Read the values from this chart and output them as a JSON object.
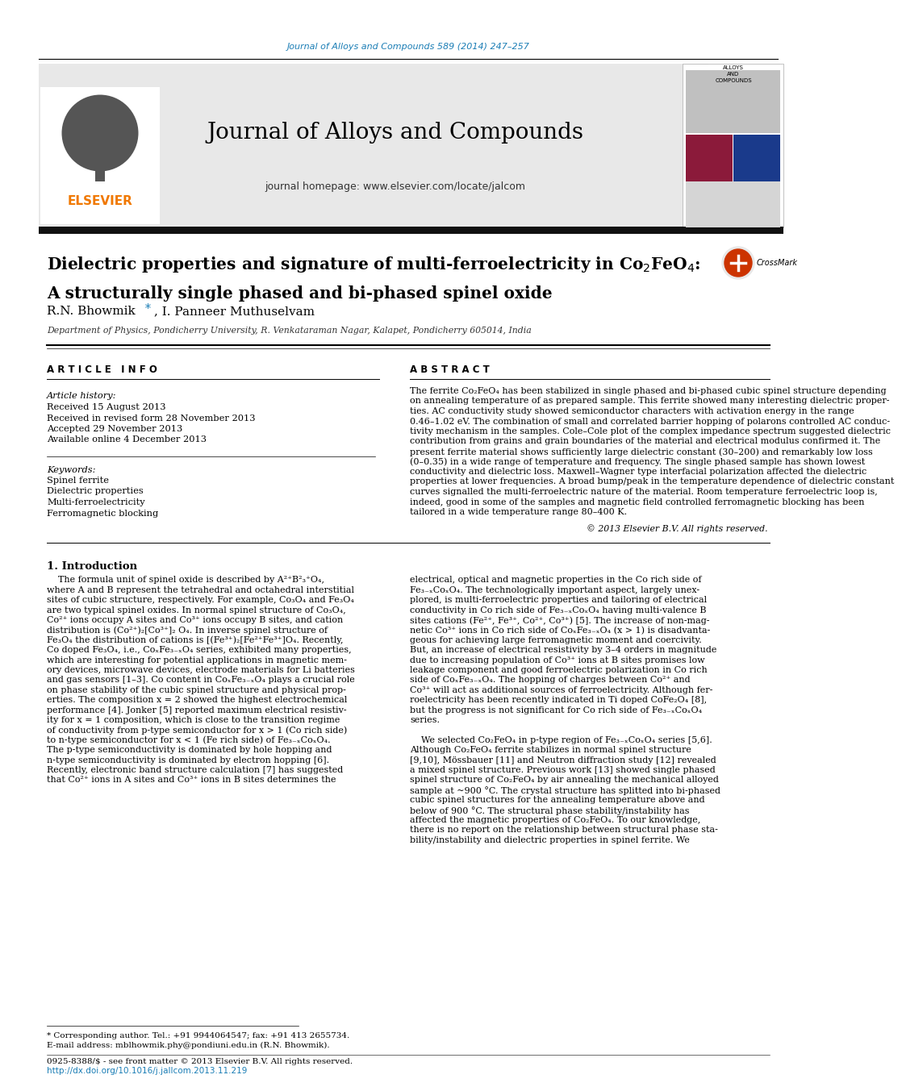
{
  "journal_link_text": "Journal of Alloys and Compounds 589 (2014) 247–257",
  "journal_link_color": "#1a7db5",
  "header_bg_color": "#e8e8e8",
  "header_journal_title": "Journal of Alloys and Compounds",
  "header_homepage": "journal homepage: www.elsevier.com/locate/jalcom",
  "elsevier_color": "#f07800",
  "paper_title_line1": "Dielectric properties and signature of multi-ferroelectricity in Co$_2$FeO$_4$:",
  "paper_title_line2": "A structurally single phased and bi-phased spinel oxide",
  "affiliation": "Department of Physics, Pondicherry University, R. Venkataraman Nagar, Kalapet, Pondicherry 605014, India",
  "article_info_header": "A R T I C L E   I N F O",
  "article_history_label": "Article history:",
  "received": "Received 15 August 2013",
  "received_revised": "Received in revised form 28 November 2013",
  "accepted": "Accepted 29 November 2013",
  "available": "Available online 4 December 2013",
  "keywords_label": "Keywords:",
  "keywords": [
    "Spinel ferrite",
    "Dielectric properties",
    "Multi-ferroelectricity",
    "Ferromagnetic blocking"
  ],
  "abstract_header": "A B S T R A C T",
  "abstract_text_lines": [
    "The ferrite Co₂FeO₄ has been stabilized in single phased and bi-phased cubic spinel structure depending",
    "on annealing temperature of as prepared sample. This ferrite showed many interesting dielectric proper-",
    "ties. AC conductivity study showed semiconductor characters with activation energy in the range",
    "0.46–1.02 eV. The combination of small and correlated barrier hopping of polarons controlled AC conduc-",
    "tivity mechanism in the samples. Cole–Cole plot of the complex impedance spectrum suggested dielectric",
    "contribution from grains and grain boundaries of the material and electrical modulus confirmed it. The",
    "present ferrite material shows sufficiently large dielectric constant (30–200) and remarkably low loss",
    "(0–0.35) in a wide range of temperature and frequency. The single phased sample has shown lowest",
    "conductivity and dielectric loss. Maxwell–Wagner type interfacial polarization affected the dielectric",
    "properties at lower frequencies. A broad bump/peak in the temperature dependence of dielectric constant",
    "curves signalled the multi-ferroelectric nature of the material. Room temperature ferroelectric loop is,",
    "indeed, good in some of the samples and magnetic field controlled ferromagnetic blocking has been",
    "tailored in a wide temperature range 80–400 K."
  ],
  "copyright_text": "© 2013 Elsevier B.V. All rights reserved.",
  "intro_header": "1. Introduction",
  "intro_col1_lines": [
    "    The formula unit of spinel oxide is described by A²⁺B²₃⁺O₄,",
    "where A and B represent the tetrahedral and octahedral interstitial",
    "sites of cubic structure, respectively. For example, Co₃O₄ and Fe₃O₄",
    "are two typical spinel oxides. In normal spinel structure of Co₃O₄,",
    "Co²⁺ ions occupy A sites and Co³⁺ ions occupy B sites, and cation",
    "distribution is (Co²⁺)₂[Co³⁺]₂ O₄. In inverse spinel structure of",
    "Fe₃O₄ the distribution of cations is [(Fe³⁺)₂[Fe²⁺Fe³⁺]O₄. Recently,",
    "Co doped Fe₃O₄, i.e., CoₓFe₃₋ₓO₄ series, exhibited many properties,",
    "which are interesting for potential applications in magnetic mem-",
    "ory devices, microwave devices, electrode materials for Li batteries",
    "and gas sensors [1–3]. Co content in CoₓFe₃₋ₓO₄ plays a crucial role",
    "on phase stability of the cubic spinel structure and physical prop-",
    "erties. The composition x = 2 showed the highest electrochemical",
    "performance [4]. Jonker [5] reported maximum electrical resistiv-",
    "ity for x = 1 composition, which is close to the transition regime",
    "of conductivity from p-type semiconductor for x > 1 (Co rich side)",
    "to n-type semiconductor for x < 1 (Fe rich side) of Fe₃₋ₓCoₓO₄.",
    "The p-type semiconductivity is dominated by hole hopping and",
    "n-type semiconductivity is dominated by electron hopping [6].",
    "Recently, electronic band structure calculation [7] has suggested",
    "that Co²⁺ ions in A sites and Co³⁺ ions in B sites determines the"
  ],
  "intro_col2_lines": [
    "electrical, optical and magnetic properties in the Co rich side of",
    "Fe₃₋ₓCoₓO₄. The technologically important aspect, largely unex-",
    "plored, is multi-ferroelectric properties and tailoring of electrical",
    "conductivity in Co rich side of Fe₃₋ₓCoₓO₄ having multi-valence B",
    "sites cations (Fe²⁺, Fe³⁺, Co²⁺, Co³⁺) [5]. The increase of non-mag-",
    "netic Co³⁺ ions in Co rich side of CoₓFe₃₋ₓO₄ (x > 1) is disadvanta-",
    "geous for achieving large ferromagnetic moment and coercivity.",
    "But, an increase of electrical resistivity by 3–4 orders in magnitude",
    "due to increasing population of Co³⁺ ions at B sites promises low",
    "leakage component and good ferroelectric polarization in Co rich",
    "side of CoₓFe₃₋ₓO₄. The hopping of charges between Co²⁺ and",
    "Co³⁺ will act as additional sources of ferroelectricity. Although fer-",
    "roelectricity has been recently indicated in Ti doped CoFe₂O₄ [8],",
    "but the progress is not significant for Co rich side of Fe₃₋ₓCoₓO₄",
    "series.",
    "",
    "    We selected Co₂FeO₄ in p-type region of Fe₃₋ₓCoₓO₄ series [5,6].",
    "Although Co₂FeO₄ ferrite stabilizes in normal spinel structure",
    "[9,10], Mössbauer [11] and Neutron diffraction study [12] revealed",
    "a mixed spinel structure. Previous work [13] showed single phased",
    "spinel structure of Co₂FeO₄ by air annealing the mechanical alloyed",
    "sample at ~900 °C. The crystal structure has splitted into bi-phased",
    "cubic spinel structures for the annealing temperature above and",
    "below of 900 °C. The structural phase stability/instability has",
    "affected the magnetic properties of Co₂FeO₄. To our knowledge,",
    "there is no report on the relationship between structural phase sta-",
    "bility/instability and dielectric properties in spinel ferrite. We"
  ],
  "footnote_text": "* Corresponding author. Tel.: +91 9944064547; fax: +91 413 2655734.",
  "email_text": "E-mail address: mblhowmik.phy@pondiuni.edu.in (R.N. Bhowmik).",
  "issn_text": "0925-8388/$ - see front matter © 2013 Elsevier B.V. All rights reserved.",
  "doi_text": "http://dx.doi.org/10.1016/j.jallcom.2013.11.219",
  "doi_color": "#1a7db5",
  "bg_color": "#ffffff",
  "text_color": "#000000"
}
